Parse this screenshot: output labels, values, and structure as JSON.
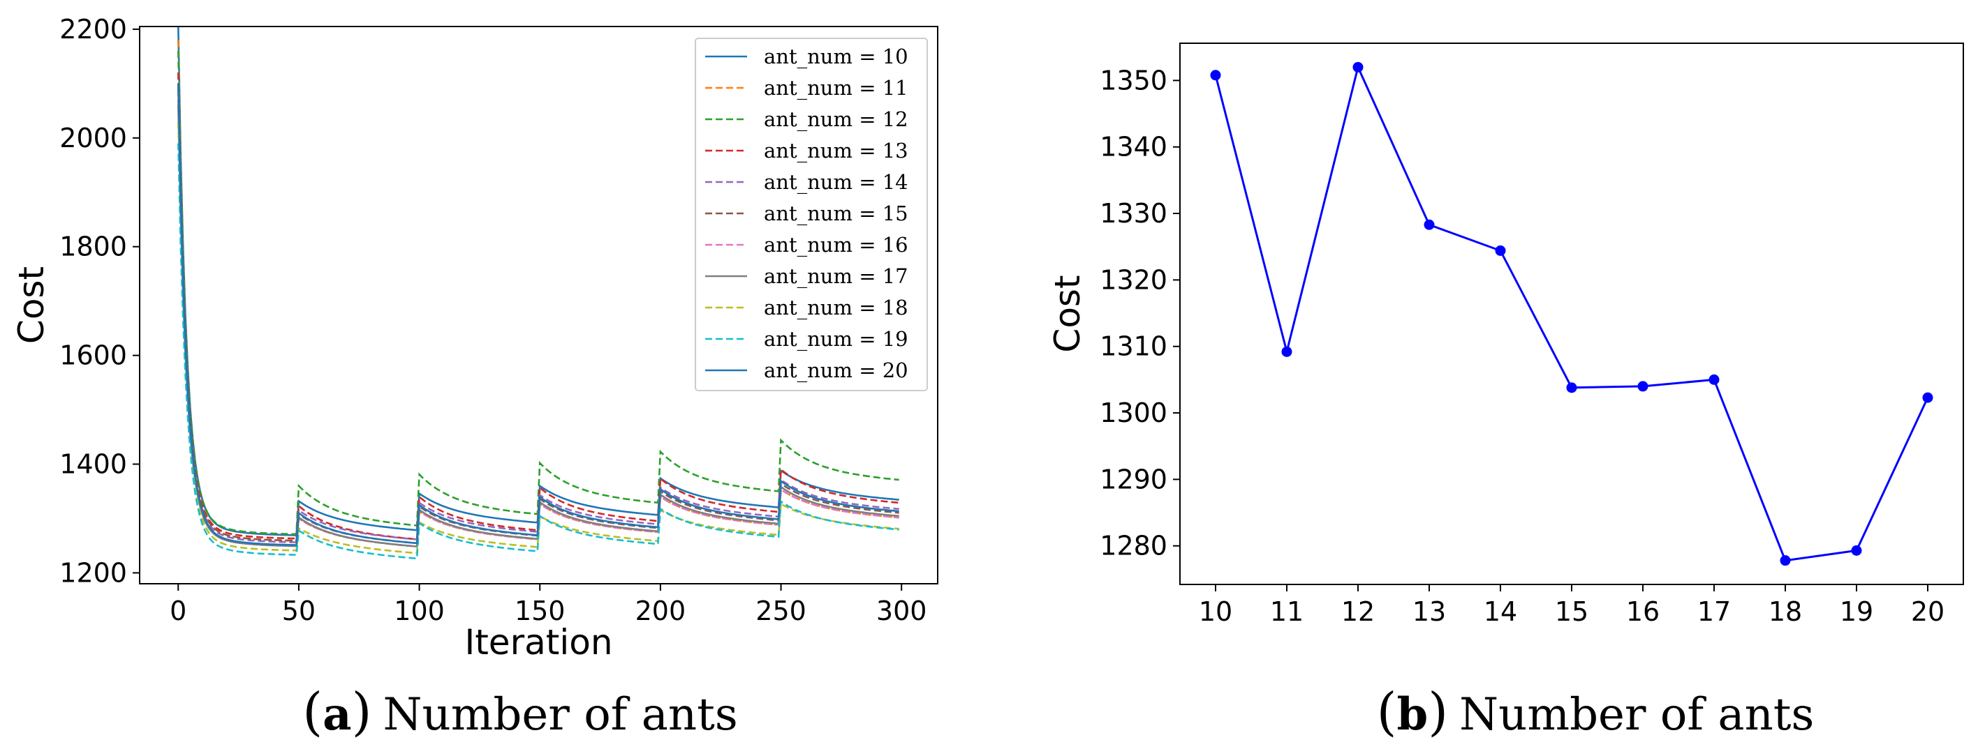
{
  "chart_data": [
    {
      "type": "line",
      "title": "",
      "xlabel": "Iteration",
      "ylabel": "Cost",
      "xlim": [
        -16,
        315
      ],
      "ylim": [
        1180,
        2205
      ],
      "xticks": [
        0,
        50,
        100,
        150,
        200,
        250,
        300
      ],
      "yticks": [
        1200,
        1400,
        1600,
        1800,
        2000,
        2200
      ],
      "legend_position": "top-right",
      "caption": {
        "letter": "a",
        "text": "Number of ants"
      },
      "series": [
        {
          "name": "ant_num = 10",
          "color": "#1f77b4",
          "dash": "solid",
          "start": 2165,
          "init_min": 1268,
          "base": 1292,
          "jump": 40
        },
        {
          "name": "ant_num = 11",
          "color": "#ff7f0e",
          "dash": "dashed",
          "start": 2140,
          "init_min": 1258,
          "base": 1262,
          "jump": 38
        },
        {
          "name": "ant_num = 12",
          "color": "#2ca02c",
          "dash": "dashed",
          "start": 2120,
          "init_min": 1270,
          "base": 1300,
          "jump": 60
        },
        {
          "name": "ant_num = 13",
          "color": "#d62728",
          "dash": "dashed",
          "start": 2080,
          "init_min": 1262,
          "base": 1275,
          "jump": 48
        },
        {
          "name": "ant_num = 14",
          "color": "#9467bd",
          "dash": "dashed",
          "start": 2050,
          "init_min": 1255,
          "base": 1275,
          "jump": 40
        },
        {
          "name": "ant_num = 15",
          "color": "#8c564b",
          "dash": "dashed",
          "start": 2060,
          "init_min": 1258,
          "base": 1268,
          "jump": 40
        },
        {
          "name": "ant_num = 16",
          "color": "#e377c2",
          "dash": "dashed",
          "start": 2030,
          "init_min": 1250,
          "base": 1262,
          "jump": 38
        },
        {
          "name": "ant_num = 17",
          "color": "#7f7f7f",
          "dash": "solid",
          "start": 2020,
          "init_min": 1248,
          "base": 1262,
          "jump": 40
        },
        {
          "name": "ant_num = 18",
          "color": "#bcbd22",
          "dash": "dashed",
          "start": 1990,
          "init_min": 1240,
          "base": 1250,
          "jump": 32
        },
        {
          "name": "ant_num = 19",
          "color": "#17becf",
          "dash": "dashed",
          "start": 1950,
          "init_min": 1232,
          "base": 1240,
          "jump": 38
        },
        {
          "name": "ant_num = 20",
          "color": "#1f77b4",
          "dash": "solid",
          "start": 2060,
          "init_min": 1250,
          "base": 1268,
          "jump": 42
        }
      ]
    },
    {
      "type": "line",
      "title": "",
      "xlabel": "",
      "ylabel": "Cost",
      "xlim": [
        9.5,
        20.5
      ],
      "ylim": [
        1274.2,
        1355.6
      ],
      "yticks": [
        1280,
        1290,
        1300,
        1310,
        1320,
        1330,
        1340,
        1350
      ],
      "categories": [
        "10",
        "11",
        "12",
        "13",
        "14",
        "15",
        "16",
        "17",
        "18",
        "19",
        "20"
      ],
      "x": [
        10,
        11,
        12,
        13,
        14,
        15,
        16,
        17,
        18,
        19,
        20
      ],
      "values": [
        1350.8,
        1309.2,
        1352,
        1328.3,
        1324.4,
        1303.8,
        1304,
        1305,
        1277.8,
        1279.3,
        1302.3
      ],
      "color": "#0000ff",
      "marker": "circle",
      "caption": {
        "letter": "b",
        "text": "Number of ants"
      }
    }
  ]
}
